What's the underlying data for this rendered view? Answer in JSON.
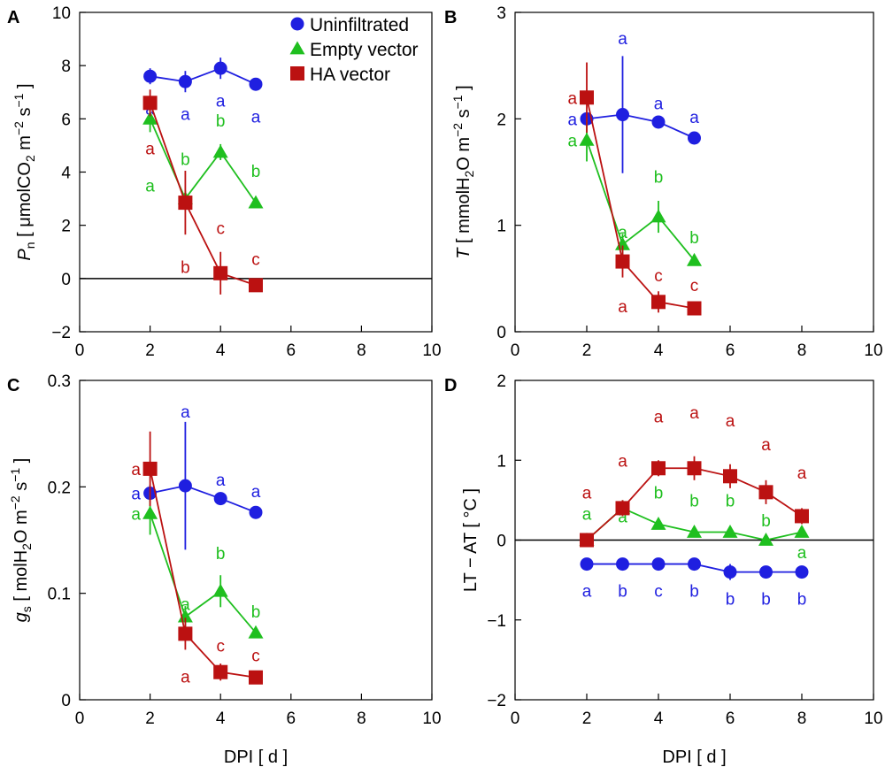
{
  "colors": {
    "Uninfiltrated": "#1f1fe0",
    "Empty vector": "#1fbf1f",
    "HA vector": "#bb1111"
  },
  "chart_data": [
    {
      "id": "A",
      "type": "scatter",
      "panel_letter": "A",
      "xlabel": "",
      "ylabel": {
        "main": "P",
        "sub": "n",
        "rest": " [ μmolCO",
        "sub2": "2",
        "rest2": " m",
        "sup": "−2",
        "rest3": " s",
        "sup2": "−1",
        "rest4": " ]"
      },
      "xlim": [
        0,
        10
      ],
      "ylim": [
        -2,
        10
      ],
      "xticks": [
        "0",
        "2",
        "4",
        "6",
        "8",
        "10"
      ],
      "yticks": [
        "−2",
        "0",
        "2",
        "4",
        "6",
        "8",
        "10"
      ],
      "ytick_values": [
        -2,
        0,
        2,
        4,
        6,
        8,
        10
      ],
      "zero_line": true,
      "legend": [
        "Uninfiltrated",
        "Empty vector",
        "HA vector"
      ],
      "series": [
        {
          "name": "Uninfiltrated",
          "marker": "circle",
          "x": [
            2,
            3,
            4,
            5
          ],
          "y": [
            7.6,
            7.4,
            7.9,
            7.3
          ],
          "err": [
            0.3,
            0.4,
            0.4,
            0.2
          ],
          "letters": [
            "a",
            "a",
            "a",
            "a"
          ],
          "letter_dy": [
            -1.2,
            -1.2,
            -1.2,
            -1.2
          ]
        },
        {
          "name": "Empty vector",
          "marker": "triangle",
          "x": [
            2,
            3,
            4,
            5
          ],
          "y": [
            6.0,
            3.0,
            4.75,
            2.85
          ],
          "err": [
            0.5,
            0.3,
            0.3,
            0.15
          ],
          "letters": [
            "a",
            "b",
            "b",
            "b"
          ],
          "letter_dy": [
            -2.5,
            1.5,
            1.2,
            1.2
          ]
        },
        {
          "name": "HA vector",
          "marker": "square",
          "x": [
            2,
            3,
            4,
            5
          ],
          "y": [
            6.6,
            2.85,
            0.2,
            -0.25
          ],
          "err": [
            0.5,
            1.2,
            0.8,
            0.2
          ],
          "letters": [
            "a",
            "b",
            "c",
            "c"
          ],
          "letter_dy": [
            -1.7,
            -2.4,
            1.7,
            1.0
          ]
        }
      ]
    },
    {
      "id": "B",
      "type": "scatter",
      "panel_letter": "B",
      "xlabel": "",
      "ylabel": {
        "main": "T",
        "rest": " [ mmolH",
        "sub2": "2",
        "rest2": "O m",
        "sup": "−2",
        "rest3": " s",
        "sup2": "−1",
        "rest4": " ]"
      },
      "xlim": [
        0,
        10
      ],
      "ylim": [
        0,
        3
      ],
      "xticks": [
        "0",
        "2",
        "4",
        "6",
        "8",
        "10"
      ],
      "yticks": [
        "0",
        "1",
        "2",
        "3"
      ],
      "ytick_values": [
        0,
        1,
        2,
        3
      ],
      "zero_line": false,
      "series": [
        {
          "name": "Uninfiltrated",
          "marker": "circle",
          "x": [
            2,
            3,
            4,
            5
          ],
          "y": [
            2.0,
            2.04,
            1.97,
            1.82
          ],
          "err": [
            0.05,
            0.55,
            0.05,
            0.05
          ],
          "letters": [
            "a",
            "a",
            "a",
            "a"
          ],
          "letter_dx": [
            -0.4,
            0,
            0,
            0
          ],
          "letter_dy": [
            0,
            0.72,
            0.18,
            0.2
          ]
        },
        {
          "name": "Empty vector",
          "marker": "triangle",
          "x": [
            2,
            3,
            4,
            5
          ],
          "y": [
            1.8,
            0.82,
            1.08,
            0.67
          ],
          "err": [
            0.2,
            0.1,
            0.15,
            0.05
          ],
          "letters": [
            "a",
            "a",
            "b",
            "b"
          ],
          "letter_dx": [
            -0.4,
            0,
            0,
            0
          ],
          "letter_dy": [
            0,
            0.12,
            0.38,
            0.22
          ]
        },
        {
          "name": "HA vector",
          "marker": "square",
          "x": [
            2,
            3,
            4,
            5
          ],
          "y": [
            2.2,
            0.66,
            0.28,
            0.22
          ],
          "err": [
            0.33,
            0.15,
            0.1,
            0.04
          ],
          "letters": [
            "a",
            "a",
            "c",
            "c"
          ],
          "letter_dx": [
            -0.4,
            0,
            0,
            0
          ],
          "letter_dy": [
            0,
            -0.42,
            0.25,
            0.22
          ]
        }
      ]
    },
    {
      "id": "C",
      "type": "scatter",
      "panel_letter": "C",
      "xlabel": "DPI [ d ]",
      "ylabel": {
        "main": "g",
        "sub": "s",
        "rest": " [ molH",
        "sub2": "2",
        "rest2": "O m",
        "sup": "−2",
        "rest3": " s",
        "sup2": "−1",
        "rest4": " ]"
      },
      "xlim": [
        0,
        10
      ],
      "ylim": [
        0,
        0.3
      ],
      "xticks": [
        "0",
        "2",
        "4",
        "6",
        "8",
        "10"
      ],
      "yticks": [
        "0",
        "0.1",
        "0.2",
        "0.3"
      ],
      "ytick_values": [
        0,
        0.1,
        0.2,
        0.3
      ],
      "zero_line": false,
      "series": [
        {
          "name": "Uninfiltrated",
          "marker": "circle",
          "x": [
            2,
            3,
            4,
            5
          ],
          "y": [
            0.194,
            0.201,
            0.189,
            0.176
          ],
          "err": [
            0.008,
            0.06,
            0.006,
            0.005
          ],
          "letters": [
            "a",
            "a",
            "a",
            "a"
          ],
          "letter_dx": [
            -0.4,
            0,
            0,
            0
          ],
          "letter_dy": [
            0,
            0.07,
            0.018,
            0.02
          ]
        },
        {
          "name": "Empty vector",
          "marker": "triangle",
          "x": [
            2,
            3,
            4,
            5
          ],
          "y": [
            0.175,
            0.078,
            0.102,
            0.063
          ],
          "err": [
            0.02,
            0.01,
            0.015,
            0.005
          ],
          "letters": [
            "a",
            "a",
            "b",
            "b"
          ],
          "letter_dx": [
            -0.4,
            0,
            0,
            0
          ],
          "letter_dy": [
            0,
            0.012,
            0.036,
            0.02
          ]
        },
        {
          "name": "HA vector",
          "marker": "square",
          "x": [
            2,
            3,
            4,
            5
          ],
          "y": [
            0.217,
            0.062,
            0.026,
            0.021
          ],
          "err": [
            0.035,
            0.015,
            0.008,
            0.003
          ],
          "letters": [
            "a",
            "a",
            "c",
            "c"
          ],
          "letter_dx": [
            -0.4,
            0,
            0,
            0
          ],
          "letter_dy": [
            0,
            -0.04,
            0.025,
            0.021
          ]
        }
      ]
    },
    {
      "id": "D",
      "type": "scatter",
      "panel_letter": "D",
      "xlabel": "DPI [ d ]",
      "ylabel": {
        "main": "LT − AT [ °C ]"
      },
      "xlim": [
        0,
        10
      ],
      "ylim": [
        -2,
        2
      ],
      "xticks": [
        "0",
        "2",
        "4",
        "6",
        "8",
        "10"
      ],
      "yticks": [
        "−2",
        "−1",
        "0",
        "1",
        "2"
      ],
      "ytick_values": [
        -2,
        -1,
        0,
        1,
        2
      ],
      "zero_line": true,
      "series": [
        {
          "name": "Uninfiltrated",
          "marker": "circle",
          "x": [
            2,
            3,
            4,
            5,
            6,
            7,
            8
          ],
          "y": [
            -0.3,
            -0.3,
            -0.3,
            -0.3,
            -0.4,
            -0.4,
            -0.4
          ],
          "err": [
            0.03,
            0.03,
            0.03,
            0.06,
            0.1,
            0.06,
            0.08
          ],
          "letters": [
            "a",
            "b",
            "c",
            "b",
            "b",
            "b",
            "b"
          ],
          "letter_dy": [
            -0.33,
            -0.33,
            -0.33,
            -0.33,
            -0.33,
            -0.33,
            -0.33
          ]
        },
        {
          "name": "Empty vector",
          "marker": "triangle",
          "x": [
            2,
            3,
            4,
            5,
            6,
            7,
            8
          ],
          "y": [
            0.0,
            0.4,
            0.2,
            0.1,
            0.1,
            0.0,
            0.1
          ],
          "err": [
            0.08,
            0.1,
            0.05,
            0.05,
            0.05,
            0.05,
            0.05
          ],
          "letters": [
            "a",
            "a",
            "b",
            "b",
            "b",
            "b",
            "a"
          ],
          "letter_dy": [
            0.33,
            -0.1,
            0.4,
            0.4,
            0.4,
            0.25,
            -0.25
          ]
        },
        {
          "name": "HA vector",
          "marker": "square",
          "x": [
            2,
            3,
            4,
            5,
            6,
            7,
            8
          ],
          "y": [
            0.0,
            0.4,
            0.9,
            0.9,
            0.8,
            0.6,
            0.3
          ],
          "err": [
            0.05,
            0.1,
            0.1,
            0.15,
            0.15,
            0.15,
            0.1
          ],
          "letters": [
            "a",
            "a",
            "a",
            "a",
            "a",
            "a",
            "a"
          ],
          "letter_dy": [
            0.6,
            0.6,
            0.65,
            0.7,
            0.7,
            0.6,
            0.55
          ]
        }
      ]
    }
  ]
}
